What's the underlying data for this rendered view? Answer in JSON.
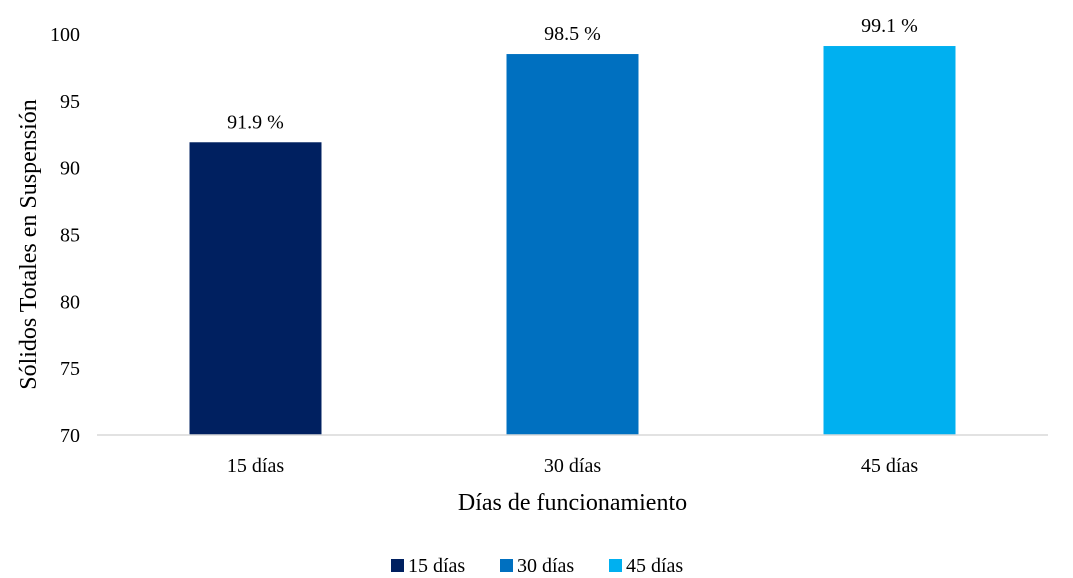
{
  "chart_data": {
    "type": "bar",
    "categories": [
      "15 días",
      "30 días",
      "45 días"
    ],
    "series": [
      {
        "name": "15 días",
        "values": [
          91.9,
          null,
          null
        ],
        "color": "#002060"
      },
      {
        "name": "30 días",
        "values": [
          null,
          98.5,
          null
        ],
        "color": "#0070C0"
      },
      {
        "name": "45 días",
        "values": [
          null,
          null,
          99.1
        ],
        "color": "#00B0F0"
      }
    ],
    "values": [
      91.9,
      98.5,
      99.1
    ],
    "data_labels": [
      "91.9 %",
      "98.5 %",
      "99.1 %"
    ],
    "colors": [
      "#002060",
      "#0070C0",
      "#00B0F0"
    ],
    "title": "",
    "xlabel": "Días de funcionamiento",
    "ylabel": "Sólidos Totales en Suspensión",
    "ylim": [
      70,
      100
    ],
    "yticks": [
      70,
      75,
      80,
      85,
      90,
      95,
      100
    ],
    "grid": false,
    "legend": {
      "position": "bottom",
      "entries": [
        "15 días",
        "30 días",
        "45 días"
      ]
    }
  }
}
